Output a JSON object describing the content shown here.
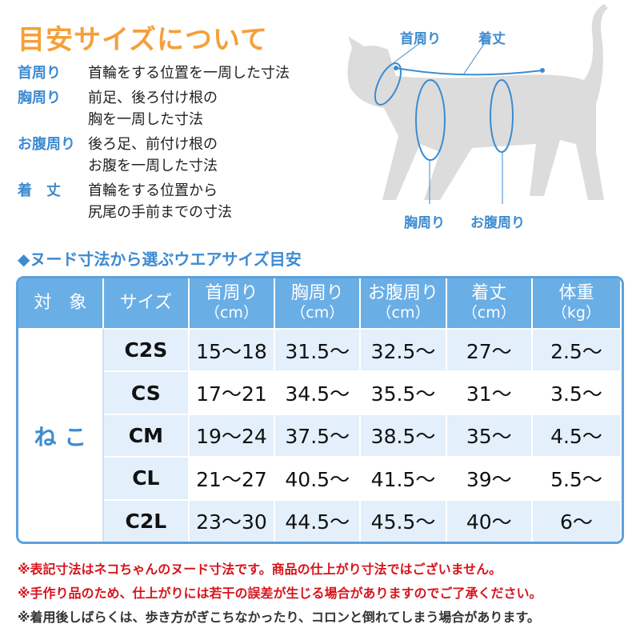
{
  "title": "目安サイズについて",
  "definitions": [
    {
      "term": "首周り",
      "desc": "首輪をする位置を一周した寸法"
    },
    {
      "term": "胸周り",
      "desc": "前足、後ろ付け根の\n胸を一周した寸法"
    },
    {
      "term": "お腹周り",
      "desc": "後ろ足、前付け根の\nお腹を一周した寸法"
    },
    {
      "term": "着　丈",
      "desc": "首輪をする位置から\n尻尾の手前までの寸法"
    }
  ],
  "diagram": {
    "neck": "首周り",
    "length": "着丈",
    "chest": "胸周り",
    "belly": "お腹周り"
  },
  "subtitle": "◆ヌード寸法から選ぶウエアサイズ目安",
  "table": {
    "headers": [
      {
        "t": "対　象",
        "u": ""
      },
      {
        "t": "サイズ",
        "u": ""
      },
      {
        "t": "首周り",
        "u": "（cm）"
      },
      {
        "t": "胸周り",
        "u": "（cm）"
      },
      {
        "t": "お腹周り",
        "u": "（cm）"
      },
      {
        "t": "着丈",
        "u": "（cm）"
      },
      {
        "t": "体重",
        "u": "（kg）"
      }
    ],
    "target": "ね こ",
    "rows": [
      [
        "C2S",
        "15～18",
        "31.5～",
        "32.5～",
        "27～",
        "2.5～"
      ],
      [
        "CS",
        "17～21",
        "34.5～",
        "35.5～",
        "31～",
        "3.5～"
      ],
      [
        "CM",
        "19～24",
        "37.5～",
        "38.5～",
        "35～",
        "4.5～"
      ],
      [
        "CL",
        "21～27",
        "40.5～",
        "41.5～",
        "39～",
        "5.5～"
      ],
      [
        "C2L",
        "23～30",
        "44.5～",
        "45.5～",
        "40～",
        "6～"
      ]
    ]
  },
  "notes": [
    "※表記寸法はネコちゃんのヌード寸法です。商品の仕上がり寸法ではございません。",
    "※手作り品のため、仕上がりには若干の誤差が生じる場合がありますのでご了承ください。",
    "※着用後しばらくは、歩き方がぎこちなかったり、コロンと倒れてしまう場合があります。"
  ],
  "colors": {
    "accent_orange": "#f5a03a",
    "accent_blue": "#3d8bd0",
    "header_blue": "#6aaee6",
    "note_red": "#d7141c"
  }
}
